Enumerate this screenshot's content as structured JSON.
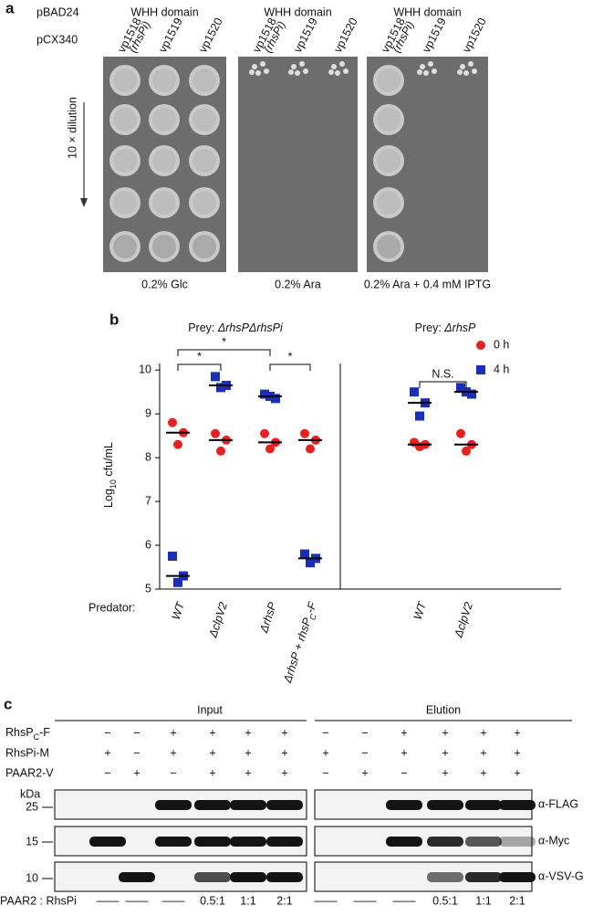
{
  "panel_a": {
    "label": "a",
    "plasmids": [
      "pBAD24",
      "pCX340"
    ],
    "header": "WHH domain",
    "columns": [
      "vp1518",
      "(rhsPi)",
      "vp1519",
      "vp1520"
    ],
    "dilution": "10 × dilution",
    "conditions": [
      "0.2% Glc",
      "0.2% Ara",
      "0.2% Ara + 0.4 mM IPTG"
    ]
  },
  "chart_data": {
    "type": "scatter",
    "label": "b",
    "groups": [
      [
        "Prey: ",
        "ΔrhsPΔrhsPi"
      ],
      [
        "Prey: ",
        "ΔrhsP"
      ]
    ],
    "ylabel": [
      "Log",
      "10",
      " cfu/mL"
    ],
    "xlabel": "Predator:",
    "categories": [
      "WT",
      "ΔclpV2",
      "ΔrhsP",
      [
        "ΔrhsP + rhsP",
        "C",
        "-F"
      ],
      "WT",
      "ΔclpV2"
    ],
    "series": [
      {
        "name": "0 h",
        "color": "#e8201f",
        "values": [
          [
            8.8,
            8.57,
            8.3
          ],
          [
            8.55,
            8.4,
            8.15
          ],
          [
            8.55,
            8.35,
            8.2
          ],
          [
            8.55,
            8.4,
            8.2
          ],
          [
            8.35,
            8.3,
            8.25
          ],
          [
            8.55,
            8.3,
            8.15
          ]
        ],
        "medians": [
          8.57,
          8.4,
          8.35,
          8.4,
          8.3,
          8.3
        ]
      },
      {
        "name": "4 h",
        "color": "#1a2fb5",
        "values": [
          [
            5.75,
            5.3,
            5.15
          ],
          [
            9.85,
            9.65,
            9.6
          ],
          [
            9.45,
            9.35,
            9.4
          ],
          [
            5.8,
            5.7,
            5.6
          ],
          [
            9.5,
            9.25,
            8.95
          ],
          [
            9.6,
            9.45,
            9.5
          ]
        ],
        "medians": [
          5.3,
          9.65,
          9.4,
          5.7,
          9.25,
          9.5
        ]
      }
    ],
    "ylim": [
      5,
      10.15
    ],
    "yticks": [
      5,
      6,
      7,
      8,
      9,
      10
    ],
    "annotations": [
      "*",
      "*",
      "*",
      "N.S."
    ]
  },
  "panel_c": {
    "label": "c",
    "input_title": "Input",
    "elution_title": "Elution",
    "rows": [
      {
        "label": [
          "RhsP",
          "C",
          "-F"
        ],
        "symbols": [
          "−",
          "−",
          "+",
          "+",
          "+",
          "+"
        ]
      },
      {
        "label": "RhsPi-M",
        "symbols": [
          "+",
          "−",
          "+",
          "+",
          "+",
          "+"
        ]
      },
      {
        "label": "PAAR2-V",
        "symbols": [
          "−",
          "+",
          "−",
          "+",
          "+",
          "+"
        ]
      }
    ],
    "kda": "kDa",
    "markers": [
      "25",
      "15",
      "10"
    ],
    "antibodies": [
      "α-FLAG",
      "α-Myc",
      "α-VSV-G"
    ],
    "ratio_label": "PAAR2 : RhsPi",
    "ratios": [
      "——",
      "——",
      "——",
      "0.5:1",
      "1:1",
      "2:1"
    ]
  }
}
